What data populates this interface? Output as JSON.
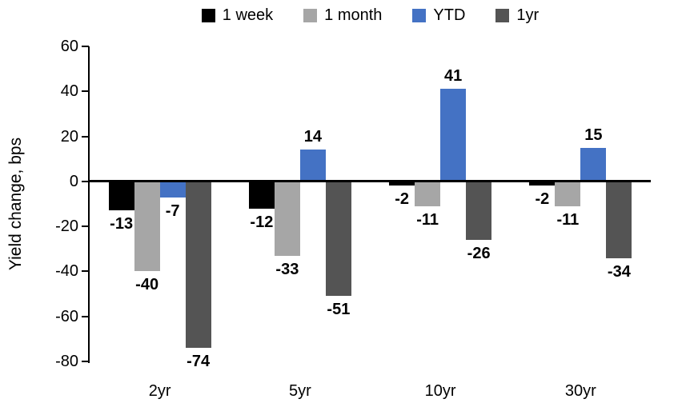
{
  "chart_data": {
    "type": "bar",
    "title": "",
    "xlabel": "",
    "ylabel": "Yield change, bps",
    "categories": [
      "2yr",
      "5yr",
      "10yr",
      "30yr"
    ],
    "series": [
      {
        "name": "1 week",
        "color": "#000000",
        "values": [
          -13,
          -12,
          -2,
          -2
        ]
      },
      {
        "name": "1 month",
        "color": "#a6a6a6",
        "values": [
          -40,
          -33,
          -11,
          -11
        ]
      },
      {
        "name": "YTD",
        "color": "#4472c4",
        "values": [
          -7,
          14,
          41,
          15
        ]
      },
      {
        "name": "1yr",
        "color": "#545454",
        "values": [
          -74,
          -51,
          -26,
          -34
        ]
      }
    ],
    "ylim": [
      -80,
      60
    ],
    "yticks": [
      60,
      40,
      20,
      0,
      -20,
      -40,
      -60,
      -80
    ],
    "legend_position": "top",
    "grid": false,
    "data_labels": true,
    "axis_color": "#000000",
    "background_color": "#ffffff"
  }
}
